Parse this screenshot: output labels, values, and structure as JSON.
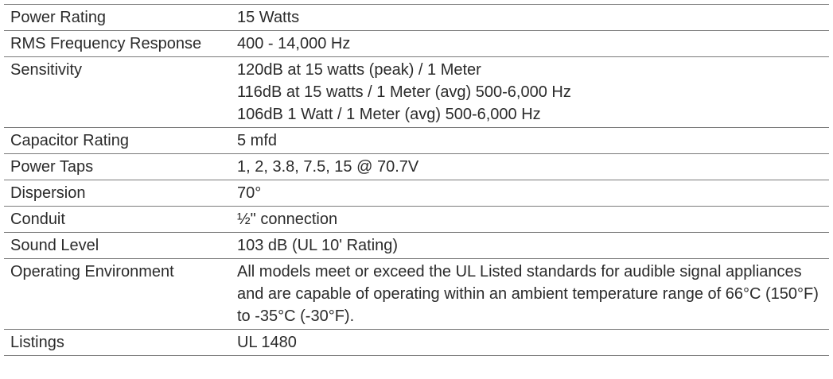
{
  "specs": [
    {
      "label": "Power Rating",
      "value": [
        "15 Watts"
      ]
    },
    {
      "label": "RMS Frequency Response",
      "value": [
        "400 - 14,000 Hz"
      ]
    },
    {
      "label": "Sensitivity",
      "value": [
        "120dB at 15 watts (peak) / 1 Meter",
        "116dB at 15 watts / 1 Meter (avg) 500-6,000 Hz",
        "106dB 1 Watt / 1 Meter (avg) 500-6,000 Hz"
      ]
    },
    {
      "label": "Capacitor Rating",
      "value": [
        "5 mfd"
      ]
    },
    {
      "label": "Power Taps",
      "value": [
        "1, 2, 3.8, 7.5, 15 @ 70.7V"
      ]
    },
    {
      "label": "Dispersion",
      "value": [
        "70°"
      ]
    },
    {
      "label": "Conduit",
      "value": [
        "½\" connection"
      ]
    },
    {
      "label": "Sound Level",
      "value": [
        "103 dB (UL 10' Rating)"
      ]
    },
    {
      "label": "Operating Environment",
      "value": [
        "All models meet or exceed the UL Listed standards for audible signal appliances and are capable of operating within an ambient temperature range of 66°C (150°F) to -35°C (-30°F)."
      ]
    },
    {
      "label": "Listings",
      "value": [
        "UL 1480"
      ]
    }
  ]
}
